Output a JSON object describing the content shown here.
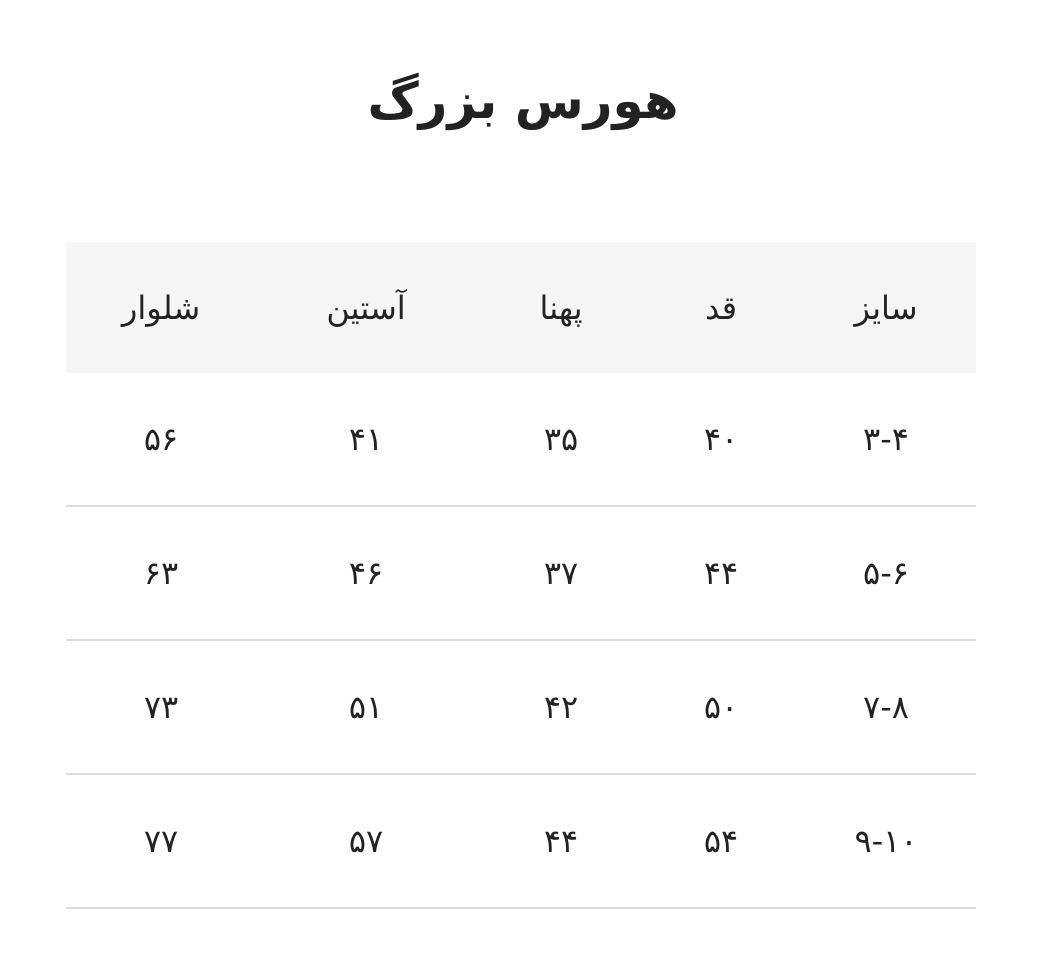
{
  "title": "هورس بزرگ",
  "table": {
    "headers": [
      "سایز",
      "قد",
      "پهنا",
      "آستین",
      "شلوار"
    ],
    "rows": [
      [
        "۳-۴",
        "۴۰",
        "۳۵",
        "۴۱",
        "۵۶"
      ],
      [
        "۵-۶",
        "۴۴",
        "۳۷",
        "۴۶",
        "۶۳"
      ],
      [
        "۷-۸",
        "۵۰",
        "۴۲",
        "۵۱",
        "۷۳"
      ],
      [
        "۹-۱۰",
        "۵۴",
        "۴۴",
        "۵۷",
        "۷۷"
      ]
    ]
  },
  "colors": {
    "header_bg": "#f5f5f5",
    "divider": "#dcdcdc",
    "text": "#222222"
  }
}
